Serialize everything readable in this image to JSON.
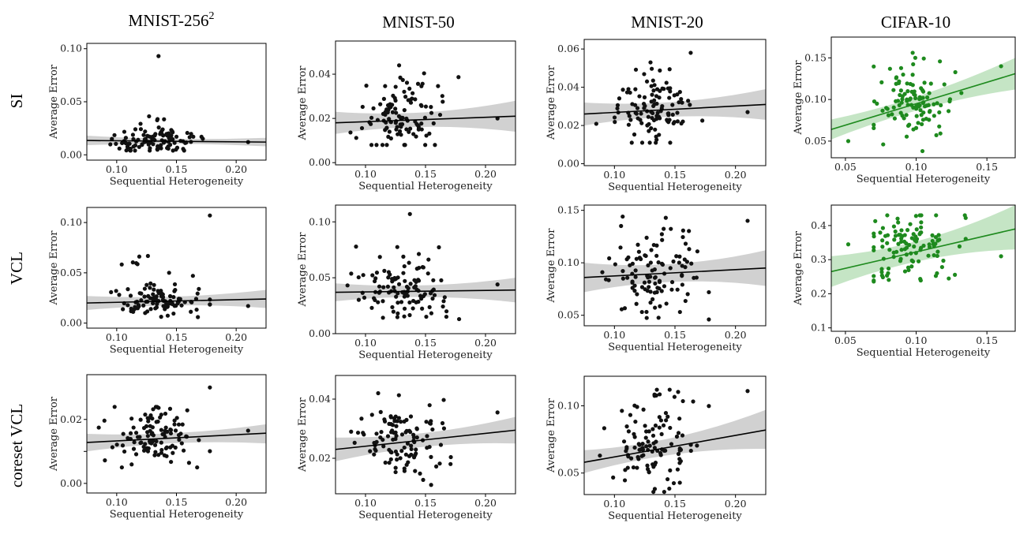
{
  "colors": {
    "black_series": "#111111",
    "green_series": "#1e8a1e",
    "black_band": "#cccccc",
    "green_band": "#bfe2bf"
  },
  "column_titles": {
    "c0_text": "MNIST-256",
    "c0_sup": "2",
    "c1": "MNIST-50",
    "c2": "MNIST-20",
    "c3": "CIFAR-10"
  },
  "row_titles": [
    "SI",
    "VCL",
    "coreset VCL"
  ],
  "chart_data": [
    {
      "type": "scatter",
      "row": "SI",
      "column": "MNIST-256²",
      "xlabel": "Sequential Heterogeneity",
      "ylabel": "Average Error",
      "xlim": [
        0.075,
        0.225
      ],
      "ylim": [
        -0.005,
        0.105
      ],
      "xticks": [
        0.1,
        0.15,
        0.2
      ],
      "xtick_labels": [
        "0.10",
        "0.15",
        "0.20"
      ],
      "yticks": [
        0,
        0.05,
        0.1
      ],
      "ytick_labels": [
        "0.00",
        "0.05",
        "0.10"
      ],
      "color": "black",
      "fit": {
        "x": [
          0.075,
          0.225
        ],
        "y": [
          0.0135,
          0.012
        ]
      },
      "band": {
        "upper": [
          0.018,
          0.016
        ],
        "lower": [
          0.009,
          0.008
        ]
      },
      "outliers": [
        [
          0.135,
          0.093
        ],
        [
          0.21,
          0.012
        ]
      ],
      "cloud": {
        "x_center": 0.133,
        "x_spread": 0.018,
        "x_min": 0.085,
        "x_max": 0.178,
        "y_center": 0.012,
        "y_spread": 0.006,
        "y_min": 0.004,
        "y_max": 0.04
      }
    },
    {
      "type": "scatter",
      "row": "SI",
      "column": "MNIST-50",
      "xlabel": "Sequential Heterogeneity",
      "ylabel": "Average Error",
      "xlim": [
        0.075,
        0.225
      ],
      "ylim": [
        -0.001,
        0.055
      ],
      "xticks": [
        0.1,
        0.15,
        0.2
      ],
      "xtick_labels": [
        "0.10",
        "0.15",
        "0.20"
      ],
      "yticks": [
        0,
        0.02,
        0.04
      ],
      "ytick_labels": [
        "0.00",
        "0.02",
        "0.04"
      ],
      "color": "black",
      "fit": {
        "x": [
          0.075,
          0.225
        ],
        "y": [
          0.018,
          0.021
        ]
      },
      "band": {
        "upper": [
          0.023,
          0.028
        ],
        "lower": [
          0.013,
          0.014
        ]
      },
      "outliers": [
        [
          0.128,
          0.044
        ],
        [
          0.21,
          0.02
        ]
      ],
      "cloud": {
        "x_center": 0.133,
        "x_spread": 0.018,
        "x_min": 0.085,
        "x_max": 0.178,
        "y_center": 0.02,
        "y_spread": 0.008,
        "y_min": 0.008,
        "y_max": 0.043
      }
    },
    {
      "type": "scatter",
      "row": "SI",
      "column": "MNIST-20",
      "xlabel": "Sequential Heterogeneity",
      "ylabel": "Average Error",
      "xlim": [
        0.075,
        0.225
      ],
      "ylim": [
        -0.001,
        0.065
      ],
      "xticks": [
        0.1,
        0.15,
        0.2
      ],
      "xtick_labels": [
        "0.10",
        "0.15",
        "0.20"
      ],
      "yticks": [
        0,
        0.02,
        0.04,
        0.06
      ],
      "ytick_labels": [
        "0.00",
        "0.02",
        "0.04",
        "0.06"
      ],
      "color": "black",
      "fit": {
        "x": [
          0.075,
          0.225
        ],
        "y": [
          0.026,
          0.031
        ]
      },
      "band": {
        "upper": [
          0.032,
          0.039
        ],
        "lower": [
          0.02,
          0.023
        ]
      },
      "outliers": [
        [
          0.163,
          0.058
        ],
        [
          0.21,
          0.027
        ]
      ],
      "cloud": {
        "x_center": 0.133,
        "x_spread": 0.018,
        "x_min": 0.085,
        "x_max": 0.178,
        "y_center": 0.028,
        "y_spread": 0.009,
        "y_min": 0.011,
        "y_max": 0.053
      }
    },
    {
      "type": "scatter",
      "row": "SI",
      "column": "CIFAR-10",
      "xlabel": "Sequential Heterogeneity",
      "ylabel": "Average Error",
      "xlim": [
        0.04,
        0.17
      ],
      "ylim": [
        0.03,
        0.175
      ],
      "xticks": [
        0.05,
        0.1,
        0.15
      ],
      "xtick_labels": [
        "0.05",
        "0.10",
        "0.15"
      ],
      "yticks": [
        0.05,
        0.1,
        0.15
      ],
      "ytick_labels": [
        "0.05",
        "0.10",
        "0.15"
      ],
      "color": "green",
      "fit": {
        "x": [
          0.04,
          0.17
        ],
        "y": [
          0.064,
          0.131
        ]
      },
      "band": {
        "upper": [
          0.076,
          0.15
        ],
        "lower": [
          0.052,
          0.112
        ]
      },
      "outliers": [
        [
          0.052,
          0.05
        ],
        [
          0.16,
          0.14
        ]
      ],
      "cloud": {
        "x_center": 0.096,
        "x_spread": 0.014,
        "x_min": 0.07,
        "x_max": 0.135,
        "y_center": 0.092,
        "y_spread": 0.02,
        "y_min": 0.038,
        "y_max": 0.165
      }
    },
    {
      "type": "scatter",
      "row": "VCL",
      "column": "MNIST-256²",
      "xlabel": "Sequential Heterogeneity",
      "ylabel": "Average Error",
      "xlim": [
        0.075,
        0.225
      ],
      "ylim": [
        -0.005,
        0.115
      ],
      "xticks": [
        0.1,
        0.15,
        0.2
      ],
      "xtick_labels": [
        "0.10",
        "0.15",
        "0.20"
      ],
      "yticks": [
        0,
        0.05,
        0.1
      ],
      "ytick_labels": [
        "0.00",
        "0.05",
        "0.10"
      ],
      "color": "black",
      "fit": {
        "x": [
          0.075,
          0.225
        ],
        "y": [
          0.02,
          0.024
        ]
      },
      "band": {
        "upper": [
          0.027,
          0.033
        ],
        "lower": [
          0.013,
          0.015
        ]
      },
      "outliers": [
        [
          0.178,
          0.107
        ],
        [
          0.21,
          0.017
        ]
      ],
      "cloud": {
        "x_center": 0.133,
        "x_spread": 0.018,
        "x_min": 0.085,
        "x_max": 0.178,
        "y_center": 0.022,
        "y_spread": 0.008,
        "y_min": 0.006,
        "y_max": 0.078
      }
    },
    {
      "type": "scatter",
      "row": "VCL",
      "column": "MNIST-50",
      "xlabel": "Sequential Heterogeneity",
      "ylabel": "Average Error",
      "xlim": [
        0.075,
        0.225
      ],
      "ylim": [
        0,
        0.115
      ],
      "xticks": [
        0.1,
        0.15,
        0.2
      ],
      "xtick_labels": [
        "0.10",
        "0.15",
        "0.20"
      ],
      "yticks": [
        0,
        0.05,
        0.1
      ],
      "ytick_labels": [
        "0.00",
        "0.05",
        "0.10"
      ],
      "color": "black",
      "fit": {
        "x": [
          0.075,
          0.225
        ],
        "y": [
          0.037,
          0.039
        ]
      },
      "band": {
        "upper": [
          0.045,
          0.05
        ],
        "lower": [
          0.029,
          0.028
        ]
      },
      "outliers": [
        [
          0.137,
          0.107
        ],
        [
          0.21,
          0.044
        ]
      ],
      "cloud": {
        "x_center": 0.133,
        "x_spread": 0.018,
        "x_min": 0.085,
        "x_max": 0.178,
        "y_center": 0.038,
        "y_spread": 0.012,
        "y_min": 0.013,
        "y_max": 0.078
      }
    },
    {
      "type": "scatter",
      "row": "VCL",
      "column": "MNIST-20",
      "xlabel": "Sequential Heterogeneity",
      "ylabel": "Average Error",
      "xlim": [
        0.075,
        0.225
      ],
      "ylim": [
        0.04,
        0.155
      ],
      "xticks": [
        0.1,
        0.15,
        0.2
      ],
      "xtick_labels": [
        "0.10",
        "0.15",
        "0.20"
      ],
      "yticks": [
        0.05,
        0.1,
        0.15
      ],
      "ytick_labels": [
        "0.05",
        "0.10",
        "0.15"
      ],
      "color": "black",
      "fit": {
        "x": [
          0.075,
          0.225
        ],
        "y": [
          0.086,
          0.095
        ]
      },
      "band": {
        "upper": [
          0.1,
          0.112
        ],
        "lower": [
          0.072,
          0.078
        ]
      },
      "outliers": [
        [
          0.21,
          0.14
        ],
        [
          0.09,
          0.091
        ]
      ],
      "cloud": {
        "x_center": 0.133,
        "x_spread": 0.018,
        "x_min": 0.085,
        "x_max": 0.178,
        "y_center": 0.09,
        "y_spread": 0.022,
        "y_min": 0.046,
        "y_max": 0.145
      }
    },
    {
      "type": "scatter",
      "row": "VCL",
      "column": "CIFAR-10",
      "xlabel": "Sequential Heterogeneity",
      "ylabel": "Average Error",
      "xlim": [
        0.04,
        0.17
      ],
      "ylim": [
        0.09,
        0.46
      ],
      "xticks": [
        0.05,
        0.1,
        0.15
      ],
      "xtick_labels": [
        "0.05",
        "0.10",
        "0.15"
      ],
      "yticks": [
        0.1,
        0.2,
        0.3,
        0.4
      ],
      "ytick_labels": [
        "0.1",
        "0.2",
        "0.3",
        "0.4"
      ],
      "color": "green",
      "fit": {
        "x": [
          0.04,
          0.17
        ],
        "y": [
          0.265,
          0.39
        ]
      },
      "band": {
        "upper": [
          0.31,
          0.46
        ],
        "lower": [
          0.22,
          0.33
        ]
      },
      "outliers": [
        [
          0.052,
          0.345
        ],
        [
          0.16,
          0.31
        ]
      ],
      "cloud": {
        "x_center": 0.096,
        "x_spread": 0.014,
        "x_min": 0.07,
        "x_max": 0.135,
        "y_center": 0.33,
        "y_spread": 0.06,
        "y_min": 0.115,
        "y_max": 0.43
      }
    },
    {
      "type": "scatter",
      "row": "coreset VCL",
      "column": "MNIST-256²",
      "xlabel": "Sequential Heterogeneity",
      "ylabel": "Average Error",
      "xlim": [
        0.075,
        0.225
      ],
      "ylim": [
        -0.003,
        0.034
      ],
      "xticks": [
        0.1,
        0.15,
        0.2
      ],
      "xtick_labels": [
        "0.10",
        "0.15",
        "0.20"
      ],
      "yticks": [
        0,
        0.01,
        0.02
      ],
      "ytick_labels": [
        "0.00",
        "",
        "0.02"
      ],
      "color": "black",
      "fit": {
        "x": [
          0.075,
          0.225
        ],
        "y": [
          0.0128,
          0.0157
        ]
      },
      "band": {
        "upper": [
          0.0155,
          0.0185
        ],
        "lower": [
          0.01,
          0.0125
        ]
      },
      "outliers": [
        [
          0.178,
          0.03
        ],
        [
          0.21,
          0.0165
        ]
      ],
      "cloud": {
        "x_center": 0.133,
        "x_spread": 0.018,
        "x_min": 0.085,
        "x_max": 0.178,
        "y_center": 0.014,
        "y_spread": 0.004,
        "y_min": 0.005,
        "y_max": 0.024
      }
    },
    {
      "type": "scatter",
      "row": "coreset VCL",
      "column": "MNIST-50",
      "xlabel": "Sequential Heterogeneity",
      "ylabel": "Average Error",
      "xlim": [
        0.075,
        0.225
      ],
      "ylim": [
        0.008,
        0.048
      ],
      "xticks": [
        0.1,
        0.15,
        0.2
      ],
      "xtick_labels": [
        "0.10",
        "0.15",
        "0.20"
      ],
      "yticks": [
        0.02,
        0.04
      ],
      "ytick_labels": [
        "0.02",
        "0.04"
      ],
      "color": "black",
      "fit": {
        "x": [
          0.075,
          0.225
        ],
        "y": [
          0.023,
          0.0295
        ]
      },
      "band": {
        "upper": [
          0.027,
          0.034
        ],
        "lower": [
          0.019,
          0.025
        ]
      },
      "outliers": [
        [
          0.21,
          0.0355
        ],
        [
          0.088,
          0.029
        ]
      ],
      "cloud": {
        "x_center": 0.133,
        "x_spread": 0.018,
        "x_min": 0.085,
        "x_max": 0.178,
        "y_center": 0.026,
        "y_spread": 0.006,
        "y_min": 0.011,
        "y_max": 0.042
      }
    },
    {
      "type": "scatter",
      "row": "coreset VCL",
      "column": "MNIST-20",
      "xlabel": "Sequential Heterogeneity",
      "ylabel": "Average Error",
      "xlim": [
        0.075,
        0.225
      ],
      "ylim": [
        0.034,
        0.122
      ],
      "xticks": [
        0.1,
        0.15,
        0.2
      ],
      "xtick_labels": [
        "0.10",
        "0.15",
        "0.20"
      ],
      "yticks": [
        0.05,
        0.1
      ],
      "ytick_labels": [
        "0.05",
        "0.10"
      ],
      "color": "black",
      "fit": {
        "x": [
          0.075,
          0.225
        ],
        "y": [
          0.058,
          0.082
        ]
      },
      "band": {
        "upper": [
          0.067,
          0.097
        ],
        "lower": [
          0.05,
          0.068
        ]
      },
      "outliers": [
        [
          0.21,
          0.111
        ],
        [
          0.088,
          0.063
        ]
      ],
      "cloud": {
        "x_center": 0.133,
        "x_spread": 0.018,
        "x_min": 0.085,
        "x_max": 0.178,
        "y_center": 0.068,
        "y_spread": 0.016,
        "y_min": 0.036,
        "y_max": 0.112
      }
    }
  ]
}
